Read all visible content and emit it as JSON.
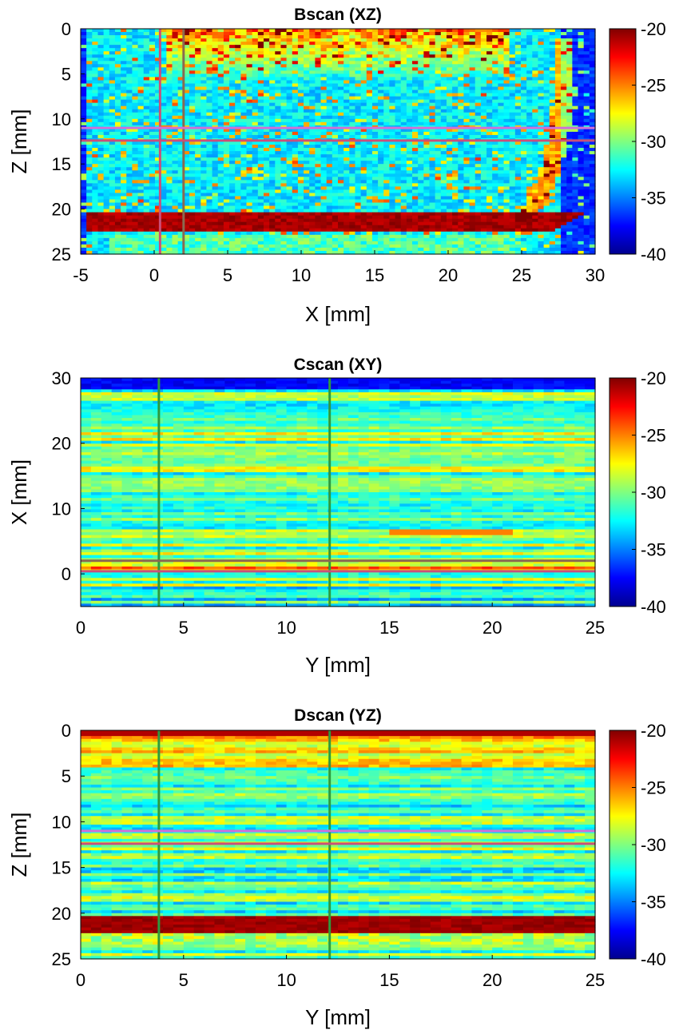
{
  "colormap": {
    "name": "jet",
    "stops": [
      "#00008f",
      "#0000ff",
      "#00ffff",
      "#ffff00",
      "#ff0000",
      "#800000"
    ]
  },
  "chart_data": [
    {
      "type": "heatmap",
      "title": "Bscan (XZ)",
      "xlabel": "X [mm]",
      "ylabel": "Z [mm]",
      "xlim": [
        -5,
        30
      ],
      "ylim": [
        0,
        25
      ],
      "y_reversed": true,
      "xticks": [
        "-5",
        "0",
        "5",
        "10",
        "15",
        "20",
        "25",
        "30"
      ],
      "yticks": [
        "0",
        "5",
        "10",
        "15",
        "20",
        "25"
      ],
      "colorbar": {
        "range": [
          -40,
          -20
        ],
        "ticks": [
          "-20",
          "-25",
          "-30",
          "-35",
          "-40"
        ]
      },
      "cursor_lines": [
        {
          "orientation": "vertical",
          "value": 0.4,
          "color": "#c9507a"
        },
        {
          "orientation": "vertical",
          "value": 2.0,
          "color": "#8a6a50"
        },
        {
          "orientation": "horizontal",
          "value": 11.0,
          "color": "#d070d8"
        },
        {
          "orientation": "horizontal",
          "value": 12.4,
          "color": "#c9507a"
        }
      ],
      "features": [
        {
          "name": "bright speckle band near surface",
          "x_range": [
            1,
            24
          ],
          "z_range": [
            0,
            6
          ],
          "level_db": -22
        },
        {
          "name": "back-wall reflection",
          "x_range": [
            -4,
            27
          ],
          "z_range": [
            20,
            22.5
          ],
          "level_db": -20
        },
        {
          "name": "curved side wall echo",
          "x_range": [
            25,
            28.5
          ],
          "z_range": [
            2,
            21
          ],
          "level_db": -26
        }
      ]
    },
    {
      "type": "heatmap",
      "title": "Cscan (XY)",
      "xlabel": "Y [mm]",
      "ylabel": "X [mm]",
      "xlim": [
        0,
        25
      ],
      "ylim": [
        -5,
        30
      ],
      "y_reversed": false,
      "xticks": [
        "0",
        "5",
        "10",
        "15",
        "20",
        "25"
      ],
      "yticks": [
        "30",
        "20",
        "10",
        "0"
      ],
      "colorbar": {
        "range": [
          -40,
          -20
        ],
        "ticks": [
          "-20",
          "-25",
          "-30",
          "-35",
          "-40"
        ]
      },
      "cursor_lines": [
        {
          "orientation": "vertical",
          "value": 3.8,
          "color": "#2e9a3e"
        },
        {
          "orientation": "vertical",
          "value": 12.1,
          "color": "#2e9a3e"
        },
        {
          "orientation": "horizontal",
          "value": 0.4,
          "color": "#c9507a"
        },
        {
          "orientation": "horizontal",
          "value": 2.0,
          "color": "#8a6a50"
        }
      ],
      "features": [
        {
          "name": "horizontal streaks",
          "level_db": -32
        },
        {
          "name": "warm line",
          "x_range": [
            15,
            21
          ],
          "y_value": 6.5,
          "level_db": -25
        }
      ]
    },
    {
      "type": "heatmap",
      "title": "Dscan (YZ)",
      "xlabel": "Y [mm]",
      "ylabel": "Z [mm]",
      "xlim": [
        0,
        25
      ],
      "ylim": [
        0,
        25
      ],
      "y_reversed": true,
      "xticks": [
        "0",
        "5",
        "10",
        "15",
        "20",
        "25"
      ],
      "yticks": [
        "0",
        "5",
        "10",
        "15",
        "20",
        "25"
      ],
      "colorbar": {
        "range": [
          -40,
          -20
        ],
        "ticks": [
          "-20",
          "-25",
          "-30",
          "-35",
          "-40"
        ]
      },
      "cursor_lines": [
        {
          "orientation": "vertical",
          "value": 3.8,
          "color": "#2e9a3e"
        },
        {
          "orientation": "vertical",
          "value": 12.1,
          "color": "#2e9a3e"
        },
        {
          "orientation": "horizontal",
          "value": 11.0,
          "color": "#d070d8"
        },
        {
          "orientation": "horizontal",
          "value": 12.4,
          "color": "#c9507a"
        }
      ],
      "features": [
        {
          "name": "surface echo",
          "z_value": 0,
          "level_db": -20
        },
        {
          "name": "back-wall reflection",
          "z_range": [
            20.3,
            22.5
          ],
          "level_db": -20
        }
      ]
    }
  ]
}
